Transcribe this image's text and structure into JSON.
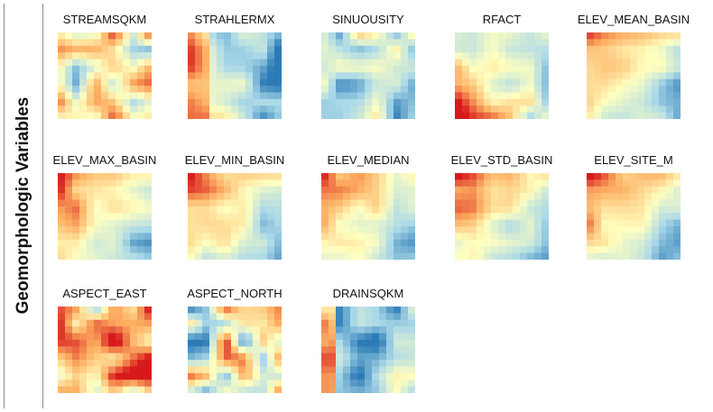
{
  "figure": {
    "side_label": "Geomorphologic Variables",
    "colormap": [
      "#2c7bb6",
      "#abd9e9",
      "#ffffbf",
      "#fdae61",
      "#d7191c"
    ],
    "panels": [
      {
        "id": "streamsqkm",
        "title": "STREAMSQKM",
        "row": 0,
        "col": 0,
        "pattern": "patchy-warm"
      },
      {
        "id": "strahlermx",
        "title": "STRAHLERMX",
        "row": 0,
        "col": 1,
        "pattern": "warm-left-edge"
      },
      {
        "id": "sinuousity",
        "title": "SINUOUSITY",
        "row": 0,
        "col": 2,
        "pattern": "mixed-blue"
      },
      {
        "id": "rfact",
        "title": "RFACT",
        "row": 0,
        "col": 3,
        "pattern": "blue-warm-bottom-left"
      },
      {
        "id": "elev-mean-basin",
        "title": "ELEV_MEAN_BASIN",
        "row": 0,
        "col": 4,
        "pattern": "gradient-top-left"
      },
      {
        "id": "elev-max-basin",
        "title": "ELEV_MAX_BASIN",
        "row": 1,
        "col": 0,
        "pattern": "gradient-top-left"
      },
      {
        "id": "elev-min-basin",
        "title": "ELEV_MIN_BASIN",
        "row": 1,
        "col": 1,
        "pattern": "gradient-top-left"
      },
      {
        "id": "elev-median",
        "title": "ELEV_MEDIAN",
        "row": 1,
        "col": 2,
        "pattern": "gradient-top-left"
      },
      {
        "id": "elev-std-basin",
        "title": "ELEV_STD_BASIN",
        "row": 1,
        "col": 3,
        "pattern": "gradient-top-left"
      },
      {
        "id": "elev-site-m",
        "title": "ELEV_SITE_M",
        "row": 1,
        "col": 4,
        "pattern": "gradient-top-left"
      },
      {
        "id": "aspect-east",
        "title": "ASPECT_EAST",
        "row": 2,
        "col": 0,
        "pattern": "hot-patchy"
      },
      {
        "id": "aspect-north",
        "title": "ASPECT_NORTH",
        "row": 2,
        "col": 1,
        "pattern": "red-blue-patchy"
      },
      {
        "id": "drainsqkm",
        "title": "DRAINSQKM",
        "row": 2,
        "col": 2,
        "pattern": "cool-warm-left"
      }
    ]
  }
}
